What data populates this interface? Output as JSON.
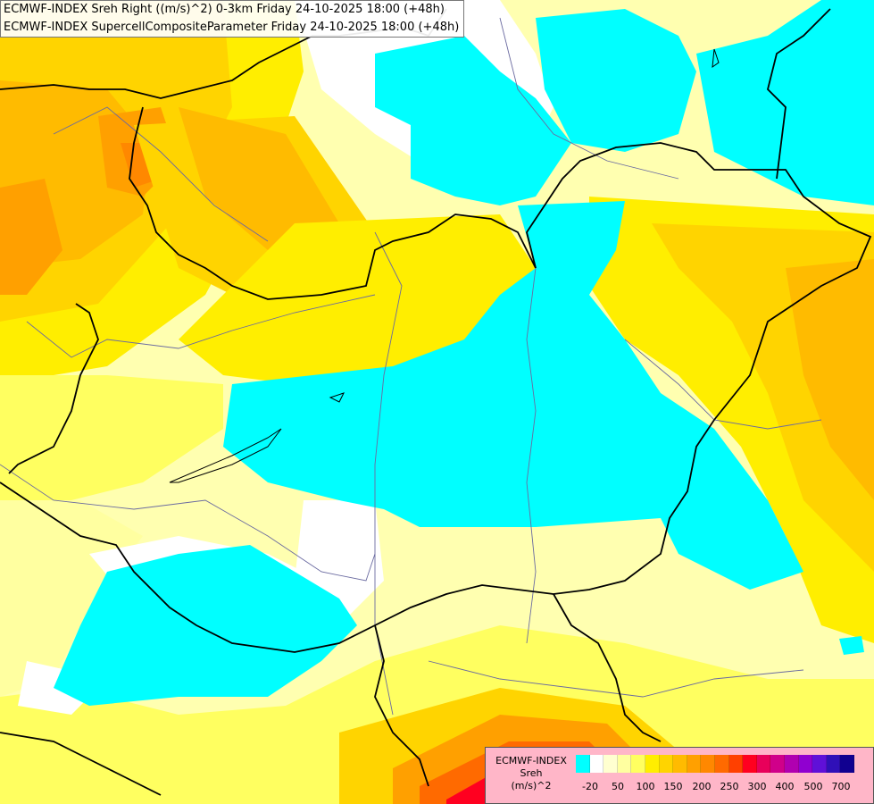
{
  "header": {
    "line1": "ECMWF-INDEX Sreh Right ((m/s)^2) 0-3km Friday 24-10-2025 18:00 (+48h)",
    "line2": "ECMWF-INDEX SupercellCompositeParameter Friday 24-10-2025 18:00 (+48h)"
  },
  "legend": {
    "title": "ECMWF-INDEX",
    "parameter": "Sreh",
    "unit": "(m/s)^2",
    "colors": [
      "#00ffff",
      "#ffffff",
      "#ffffd0",
      "#ffffa0",
      "#ffff60",
      "#ffee00",
      "#ffd400",
      "#ffbb00",
      "#ffa000",
      "#ff8800",
      "#ff6a00",
      "#ff4000",
      "#ff0020",
      "#e8005a",
      "#d0008a",
      "#b000b0",
      "#9000d0",
      "#6010d8",
      "#3010b8",
      "#100090"
    ],
    "tick_labels": [
      "-20",
      "50",
      "100",
      "150",
      "200",
      "250",
      "300",
      "400",
      "500",
      "700"
    ]
  }
}
